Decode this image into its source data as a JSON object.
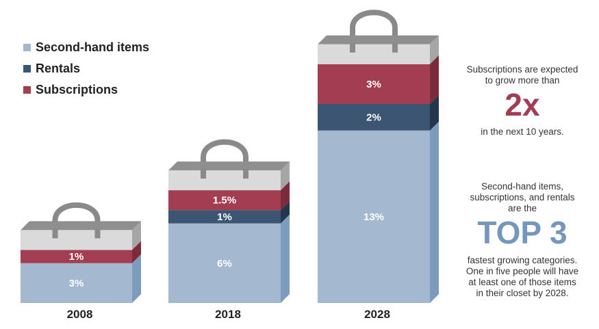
{
  "colors": {
    "second_hand": "#a4b8d0",
    "second_hand_side": "#7d9bbd",
    "rentals": "#3b5572",
    "rentals_side": "#24364b",
    "subscriptions": "#a33d52",
    "subscriptions_side": "#7b2b3b",
    "bag_top": "#dadada",
    "bag_top_side": "#a6a6a6",
    "bag_top_cap": "#8f8f8f",
    "handle": "#8a8a8a",
    "big_2x": "#a33d52",
    "big_top3": "#7597be"
  },
  "chart_data": {
    "type": "bar",
    "stacked": true,
    "categories": [
      "2008",
      "2018",
      "2028"
    ],
    "series": [
      {
        "name": "Second-hand items",
        "values": [
          3,
          6,
          13
        ],
        "labels": [
          "3%",
          "6%",
          "13%"
        ],
        "color": "#a4b8d0"
      },
      {
        "name": "Rentals",
        "values": [
          0,
          1,
          2
        ],
        "labels": [
          "",
          "1%",
          "2%"
        ],
        "color": "#3b5572"
      },
      {
        "name": "Subscriptions",
        "values": [
          1,
          1.5,
          3
        ],
        "labels": [
          "1%",
          "1.5%",
          "3%"
        ],
        "color": "#a33d52"
      }
    ],
    "legend_position": "top-left"
  },
  "annotations": {
    "subs_line1": "Subscriptions are expected",
    "subs_line2": "to grow more than",
    "subs_big": "2x",
    "subs_line3": "in the next 10 years.",
    "top3_line1": "Second-hand items,",
    "top3_line2": "subscriptions, and rentals",
    "top3_line3": "are the",
    "top3_big": "TOP 3",
    "top3_line4": "fastest growing categories.",
    "top3_line5": "One in five people will have",
    "top3_line6": "at least one of those items",
    "top3_line7": "in their closet by 2028."
  }
}
